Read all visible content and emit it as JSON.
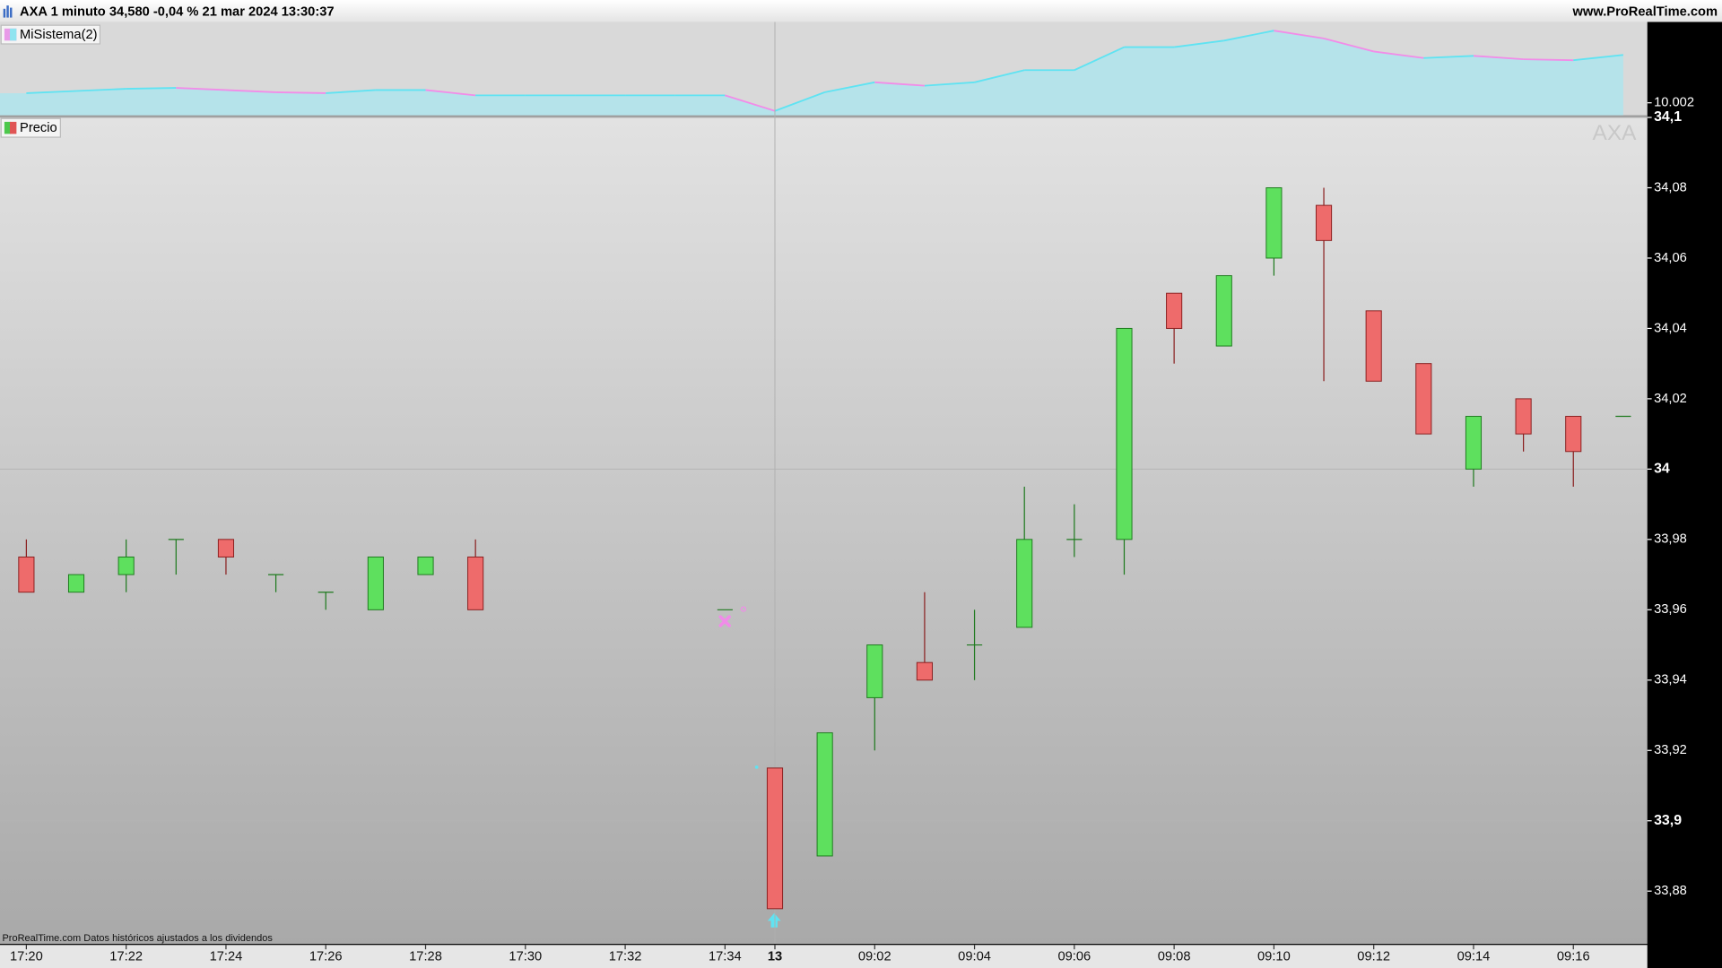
{
  "header": {
    "title": "AXA 1 minuto 34,580 -0,04 % 21 mar 2024 13:30:37",
    "site": "www.ProRealTime.com"
  },
  "footer": "ProRealTime.com Datos históricos ajustados a los dividendos",
  "chart_data": [
    {
      "type": "area",
      "title": "MiSistema(2)",
      "up_color": "#5fe3f2",
      "down_color": "#f28ce8",
      "fill": "#b5e3ea",
      "values": [
        10.00231,
        10.00238,
        10.00245,
        10.00248,
        10.00241,
        10.00234,
        10.00231,
        10.00241,
        10.00241,
        10.00224,
        10.00224,
        10.00224,
        10.00224,
        10.00224,
        10.00224,
        10.00174,
        10.00234,
        10.00266,
        10.00255,
        10.00266,
        10.00305,
        10.00305,
        10.00379,
        10.00379,
        10.004,
        10.00432,
        10.00407,
        10.00365,
        10.00344,
        10.00351,
        10.0034,
        10.00337,
        10.00354
      ],
      "ylim": [
        10.0016,
        10.0046
      ],
      "yticks": [
        10.002
      ]
    },
    {
      "type": "candlestick",
      "title": "Precio",
      "watermark": "AXA",
      "up_color": "#5ee05e",
      "down_color": "#ee6b6b",
      "categories": [
        "17:20",
        null,
        "17:22",
        null,
        "17:24",
        null,
        "17:26",
        null,
        "17:28",
        null,
        "17:30",
        null,
        "17:32",
        null,
        "17:34",
        "13",
        null,
        "09:02",
        null,
        "09:04",
        null,
        "09:06",
        null,
        "09:08",
        null,
        "09:10",
        null,
        "09:12",
        null,
        "09:14",
        null,
        "09:16",
        null
      ],
      "open": [
        33.975,
        33.965,
        33.97,
        33.98,
        33.98,
        33.97,
        33.965,
        33.96,
        33.97,
        33.975,
        null,
        null,
        null,
        null,
        33.96,
        33.915,
        33.89,
        33.935,
        33.945,
        33.95,
        33.955,
        33.98,
        33.98,
        34.05,
        34.035,
        34.06,
        34.075,
        34.045,
        34.03,
        34.0,
        34.02,
        34.015,
        34.015
      ],
      "high": [
        33.98,
        33.97,
        33.98,
        33.98,
        33.98,
        33.97,
        33.965,
        33.975,
        33.975,
        33.98,
        null,
        null,
        null,
        null,
        33.96,
        33.915,
        33.925,
        33.95,
        33.965,
        33.96,
        33.995,
        33.99,
        34.04,
        34.05,
        34.055,
        34.08,
        34.08,
        34.045,
        34.03,
        34.015,
        34.02,
        34.015,
        34.015
      ],
      "low": [
        33.965,
        33.965,
        33.965,
        33.97,
        33.97,
        33.965,
        33.96,
        33.96,
        33.97,
        33.96,
        null,
        null,
        null,
        null,
        33.96,
        33.875,
        33.89,
        33.92,
        33.94,
        33.94,
        33.955,
        33.975,
        33.97,
        34.03,
        34.035,
        34.055,
        34.025,
        34.025,
        34.01,
        33.995,
        34.005,
        33.995,
        34.015
      ],
      "close": [
        33.965,
        33.97,
        33.975,
        33.98,
        33.975,
        33.97,
        33.965,
        33.975,
        33.975,
        33.96,
        null,
        null,
        null,
        null,
        33.96,
        33.875,
        33.925,
        33.95,
        33.94,
        33.95,
        33.98,
        33.98,
        34.04,
        34.04,
        34.055,
        34.08,
        34.065,
        34.025,
        34.01,
        34.015,
        34.01,
        34.005,
        34.015
      ],
      "ylim": [
        33.865,
        34.1
      ],
      "yticks": [
        {
          "value": 34.1,
          "label": "34,1"
        },
        {
          "value": 34.08,
          "label": "34,08"
        },
        {
          "value": 34.06,
          "label": "34,06"
        },
        {
          "value": 34.04,
          "label": "34,04"
        },
        {
          "value": 34.02,
          "label": "34,02"
        },
        34,
        {
          "value": 33.98,
          "label": "33,98"
        },
        {
          "value": 33.96,
          "label": "33,96"
        },
        {
          "value": 33.94,
          "label": "33,94"
        },
        {
          "value": 33.92,
          "label": "33,92"
        },
        {
          "value": 33.9,
          "label": "33,9"
        },
        {
          "value": 33.88,
          "label": "33,88"
        }
      ]
    }
  ]
}
